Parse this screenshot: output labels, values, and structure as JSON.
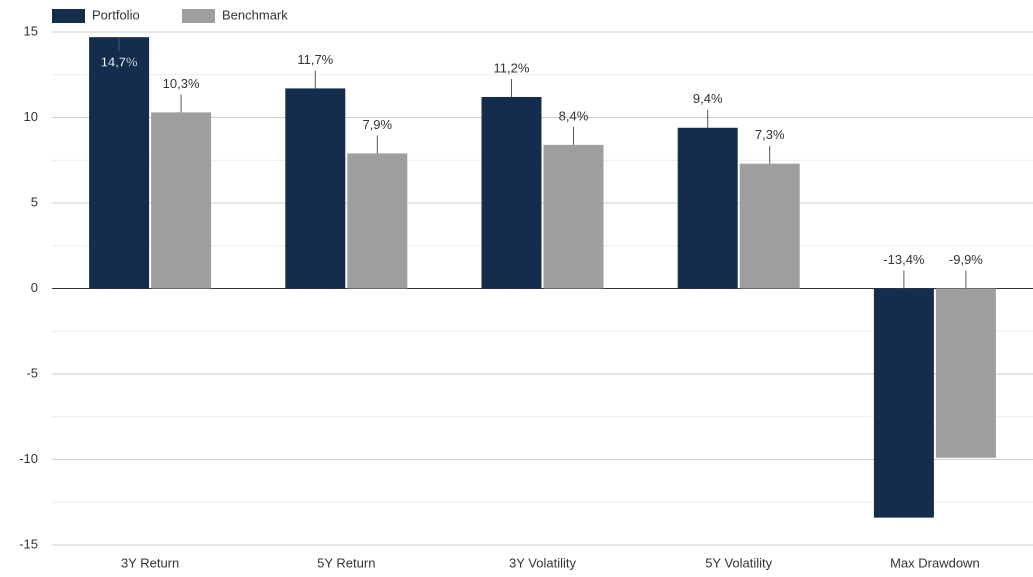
{
  "chart_data": {
    "type": "bar",
    "categories": [
      "3Y Return",
      "5Y Return",
      "3Y Volatility",
      "5Y Volatility",
      "Max Drawdown"
    ],
    "series": [
      {
        "name": "Portfolio",
        "color": "#142d4c",
        "values": [
          14.7,
          11.7,
          11.2,
          9.4,
          -13.4
        ],
        "value_labels": [
          "14,7%",
          "11,7%",
          "11,2%",
          "9,4%",
          "-13,4%"
        ]
      },
      {
        "name": "Benchmark",
        "color": "#9e9e9e",
        "values": [
          10.3,
          7.9,
          8.4,
          7.3,
          -9.9
        ],
        "value_labels": [
          "10,3%",
          "7,9%",
          "8,4%",
          "7,3%",
          "-9,9%"
        ]
      }
    ],
    "ylim": [
      -15,
      15
    ],
    "yticks": [
      -15,
      -10,
      -5,
      0,
      5,
      10,
      15
    ],
    "minor_yticks": [
      -12.5,
      -7.5,
      -2.5,
      2.5,
      7.5,
      12.5
    ],
    "grid": true,
    "legend": "top-left"
  }
}
